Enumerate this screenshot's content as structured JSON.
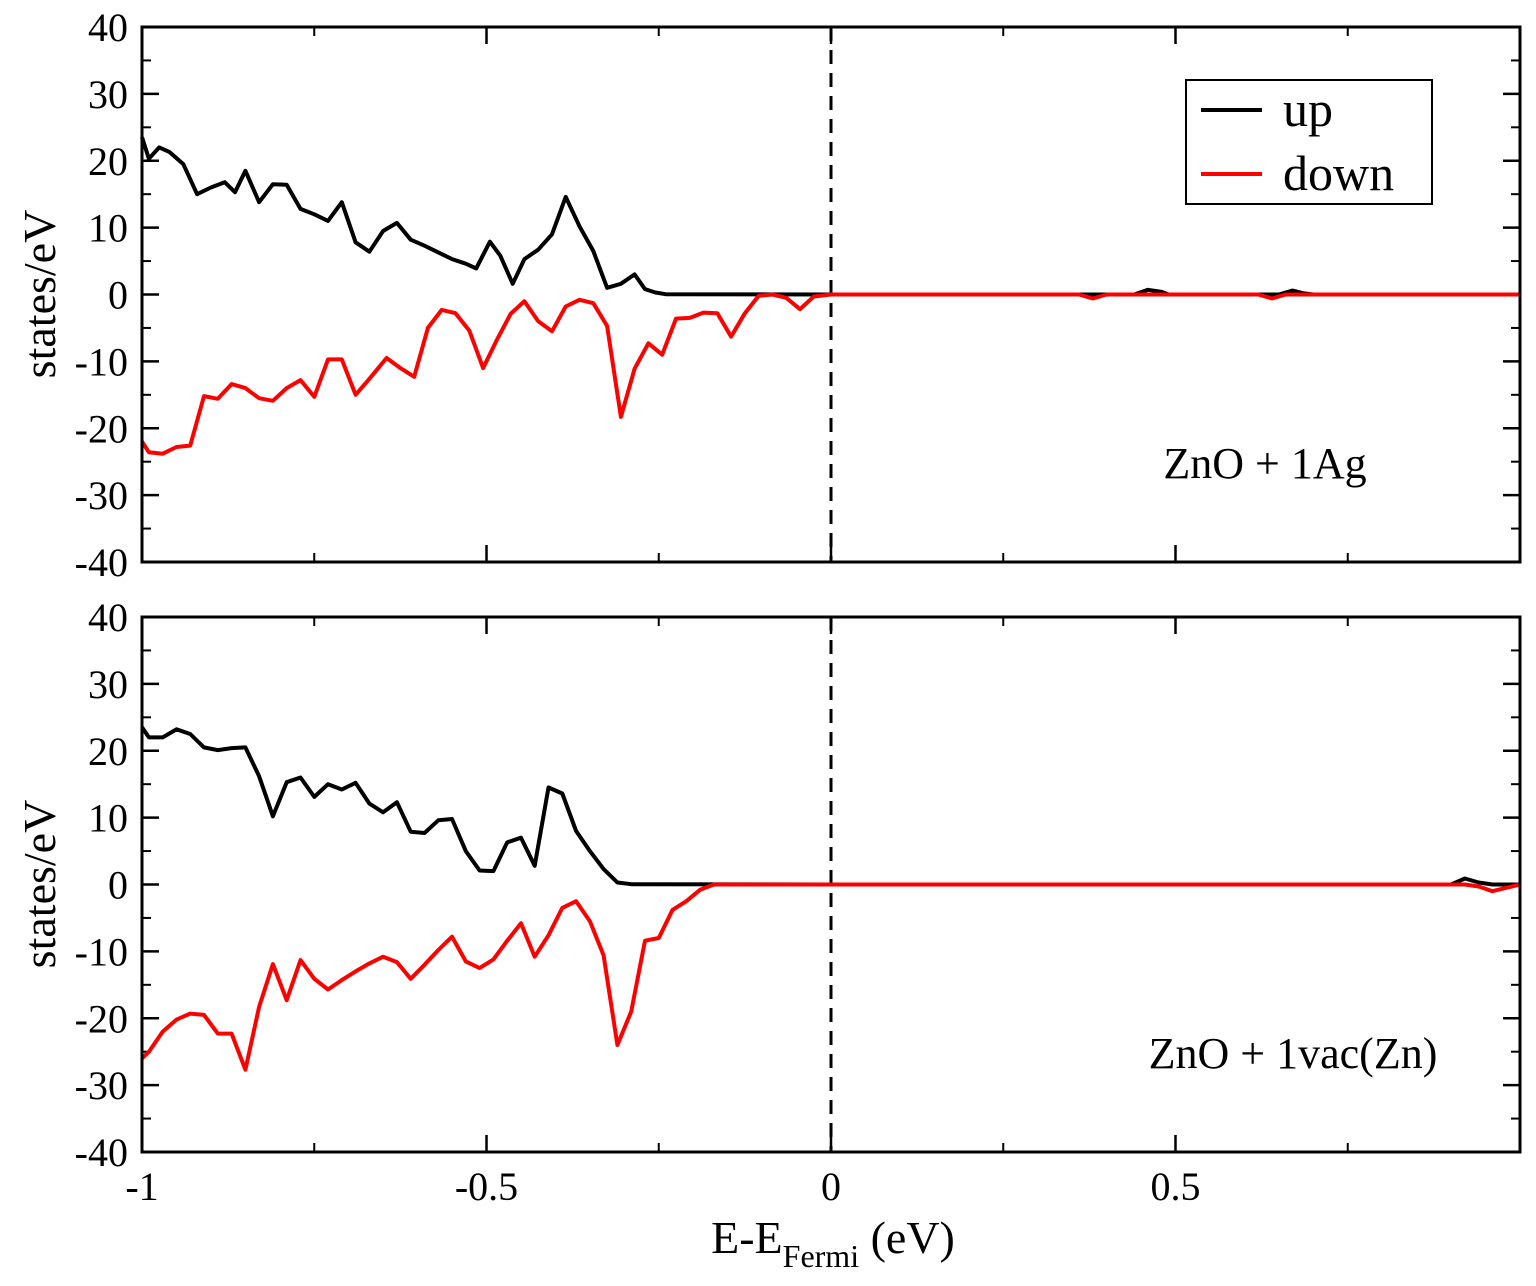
{
  "chart_data": [
    {
      "type": "line",
      "annotation": "ZnO + 1Ag",
      "ylabel": "states/eV",
      "xlim": [
        -1,
        1
      ],
      "ylim": [
        -40,
        40
      ],
      "x_ticks": [
        -1,
        -0.5,
        0,
        0.5
      ],
      "x_tick_labels": [
        "-1",
        "-0.5",
        "0",
        "0.5"
      ],
      "y_ticks": [
        -40,
        -30,
        -20,
        -10,
        0,
        10,
        20,
        30,
        40
      ],
      "y_tick_labels": [
        "-40",
        "-30",
        "-20",
        "-10",
        "0",
        "10",
        "20",
        "30",
        "40"
      ],
      "fermi_line_x": 0,
      "legend": [
        {
          "label": "up",
          "color": "#000000"
        },
        {
          "label": "down",
          "color": "#ff0000"
        }
      ],
      "series": [
        {
          "name": "up",
          "color": "#000000",
          "points": [
            [
              -1.0,
              23.5
            ],
            [
              -0.99,
              20.3
            ],
            [
              -0.975,
              22
            ],
            [
              -0.96,
              21.3
            ],
            [
              -0.94,
              19.5
            ],
            [
              -0.92,
              15
            ],
            [
              -0.9,
              16
            ],
            [
              -0.88,
              16.8
            ],
            [
              -0.865,
              15.3
            ],
            [
              -0.85,
              18.5
            ],
            [
              -0.83,
              13.8
            ],
            [
              -0.81,
              16.5
            ],
            [
              -0.79,
              16.4
            ],
            [
              -0.77,
              12.8
            ],
            [
              -0.75,
              12
            ],
            [
              -0.73,
              11
            ],
            [
              -0.71,
              13.8
            ],
            [
              -0.69,
              7.8
            ],
            [
              -0.67,
              6.4
            ],
            [
              -0.65,
              9.5
            ],
            [
              -0.63,
              10.7
            ],
            [
              -0.61,
              8.2
            ],
            [
              -0.59,
              7.3
            ],
            [
              -0.57,
              6.3
            ],
            [
              -0.55,
              5.3
            ],
            [
              -0.53,
              4.6
            ],
            [
              -0.515,
              3.9
            ],
            [
              -0.495,
              7.9
            ],
            [
              -0.48,
              5.8
            ],
            [
              -0.462,
              1.6
            ],
            [
              -0.445,
              5.3
            ],
            [
              -0.425,
              6.7
            ],
            [
              -0.405,
              9
            ],
            [
              -0.385,
              14.6
            ],
            [
              -0.365,
              10.2
            ],
            [
              -0.345,
              6.5
            ],
            [
              -0.325,
              1
            ],
            [
              -0.305,
              1.6
            ],
            [
              -0.285,
              3
            ],
            [
              -0.27,
              0.8
            ],
            [
              -0.255,
              0.3
            ],
            [
              -0.24,
              0.05
            ],
            [
              0.0,
              0
            ],
            [
              0.44,
              0
            ],
            [
              0.46,
              0.7
            ],
            [
              0.48,
              0.4
            ],
            [
              0.49,
              0
            ],
            [
              0.65,
              0
            ],
            [
              0.67,
              0.6
            ],
            [
              0.685,
              0.2
            ],
            [
              0.7,
              0
            ],
            [
              1.0,
              0
            ]
          ]
        },
        {
          "name": "down",
          "color": "#ff0000",
          "points": [
            [
              -1.0,
              -22
            ],
            [
              -0.99,
              -23.6
            ],
            [
              -0.97,
              -23.8
            ],
            [
              -0.95,
              -22.8
            ],
            [
              -0.93,
              -22.6
            ],
            [
              -0.91,
              -15.2
            ],
            [
              -0.89,
              -15.6
            ],
            [
              -0.87,
              -13.4
            ],
            [
              -0.85,
              -14
            ],
            [
              -0.83,
              -15.5
            ],
            [
              -0.81,
              -15.9
            ],
            [
              -0.79,
              -14
            ],
            [
              -0.77,
              -12.8
            ],
            [
              -0.75,
              -15.3
            ],
            [
              -0.73,
              -9.7
            ],
            [
              -0.71,
              -9.7
            ],
            [
              -0.69,
              -15
            ],
            [
              -0.67,
              -12.6
            ],
            [
              -0.645,
              -9.5
            ],
            [
              -0.625,
              -11
            ],
            [
              -0.605,
              -12.3
            ],
            [
              -0.585,
              -5
            ],
            [
              -0.565,
              -2.3
            ],
            [
              -0.545,
              -2.8
            ],
            [
              -0.525,
              -5.4
            ],
            [
              -0.505,
              -11
            ],
            [
              -0.485,
              -6.8
            ],
            [
              -0.465,
              -2.9
            ],
            [
              -0.445,
              -1
            ],
            [
              -0.425,
              -4
            ],
            [
              -0.405,
              -5.5
            ],
            [
              -0.385,
              -1.8
            ],
            [
              -0.365,
              -0.8
            ],
            [
              -0.345,
              -1.3
            ],
            [
              -0.325,
              -4.7
            ],
            [
              -0.305,
              -18.3
            ],
            [
              -0.285,
              -11.1
            ],
            [
              -0.265,
              -7.3
            ],
            [
              -0.245,
              -9
            ],
            [
              -0.225,
              -3.6
            ],
            [
              -0.205,
              -3.5
            ],
            [
              -0.185,
              -2.7
            ],
            [
              -0.165,
              -2.8
            ],
            [
              -0.145,
              -6.3
            ],
            [
              -0.125,
              -2.8
            ],
            [
              -0.105,
              -0.2
            ],
            [
              -0.085,
              0
            ],
            [
              -0.065,
              -0.5
            ],
            [
              -0.045,
              -2.2
            ],
            [
              -0.025,
              -0.3
            ],
            [
              0.0,
              0
            ],
            [
              0.36,
              0
            ],
            [
              0.38,
              -0.6
            ],
            [
              0.4,
              0
            ],
            [
              0.62,
              0
            ],
            [
              0.64,
              -0.6
            ],
            [
              0.66,
              0
            ],
            [
              1.0,
              0
            ]
          ]
        }
      ]
    },
    {
      "type": "line",
      "annotation": "ZnO + 1vac(Zn)",
      "ylabel": "states/eV",
      "xlabel_main": "E-E",
      "xlabel_sub": "Fermi",
      "xlabel_tail": " (eV)",
      "xlim": [
        -1,
        1
      ],
      "ylim": [
        -40,
        40
      ],
      "x_ticks": [
        -1,
        -0.5,
        0,
        0.5
      ],
      "x_tick_labels": [
        "-1",
        "-0.5",
        "0",
        "0.5"
      ],
      "y_ticks": [
        -40,
        -30,
        -20,
        -10,
        0,
        10,
        20,
        30,
        40
      ],
      "y_tick_labels": [
        "-40",
        "-30",
        "-20",
        "-10",
        "0",
        "10",
        "20",
        "30",
        "40"
      ],
      "fermi_line_x": 0,
      "series": [
        {
          "name": "up",
          "color": "#000000",
          "points": [
            [
              -1.0,
              23.5
            ],
            [
              -0.99,
              22
            ],
            [
              -0.97,
              22
            ],
            [
              -0.95,
              23.2
            ],
            [
              -0.93,
              22.5
            ],
            [
              -0.91,
              20.5
            ],
            [
              -0.89,
              20.1
            ],
            [
              -0.87,
              20.4
            ],
            [
              -0.85,
              20.5
            ],
            [
              -0.83,
              16.2
            ],
            [
              -0.81,
              10.2
            ],
            [
              -0.79,
              15.3
            ],
            [
              -0.77,
              16
            ],
            [
              -0.75,
              13.1
            ],
            [
              -0.73,
              15
            ],
            [
              -0.71,
              14.2
            ],
            [
              -0.69,
              15.2
            ],
            [
              -0.67,
              12.1
            ],
            [
              -0.65,
              10.8
            ],
            [
              -0.63,
              12.3
            ],
            [
              -0.61,
              7.9
            ],
            [
              -0.59,
              7.7
            ],
            [
              -0.57,
              9.6
            ],
            [
              -0.55,
              9.8
            ],
            [
              -0.53,
              5
            ],
            [
              -0.51,
              2.1
            ],
            [
              -0.49,
              2
            ],
            [
              -0.47,
              6.3
            ],
            [
              -0.45,
              7
            ],
            [
              -0.43,
              2.8
            ],
            [
              -0.41,
              14.5
            ],
            [
              -0.39,
              13.6
            ],
            [
              -0.37,
              8
            ],
            [
              -0.35,
              5
            ],
            [
              -0.33,
              2.3
            ],
            [
              -0.31,
              0.3
            ],
            [
              -0.29,
              0.05
            ],
            [
              0.0,
              0
            ],
            [
              0.9,
              0
            ],
            [
              0.92,
              0.9
            ],
            [
              0.94,
              0.3
            ],
            [
              0.96,
              0
            ],
            [
              1.0,
              0
            ]
          ]
        },
        {
          "name": "down",
          "color": "#ff0000",
          "points": [
            [
              -1.0,
              -26
            ],
            [
              -0.99,
              -25
            ],
            [
              -0.97,
              -22
            ],
            [
              -0.95,
              -20.2
            ],
            [
              -0.93,
              -19.3
            ],
            [
              -0.91,
              -19.5
            ],
            [
              -0.89,
              -22.3
            ],
            [
              -0.87,
              -22.3
            ],
            [
              -0.85,
              -27.7
            ],
            [
              -0.83,
              -18.3
            ],
            [
              -0.81,
              -11.9
            ],
            [
              -0.79,
              -17.3
            ],
            [
              -0.77,
              -11.3
            ],
            [
              -0.75,
              -14.1
            ],
            [
              -0.73,
              -15.7
            ],
            [
              -0.71,
              -14.3
            ],
            [
              -0.69,
              -13
            ],
            [
              -0.67,
              -11.8
            ],
            [
              -0.65,
              -10.8
            ],
            [
              -0.63,
              -11.6
            ],
            [
              -0.61,
              -14.1
            ],
            [
              -0.59,
              -12
            ],
            [
              -0.57,
              -9.8
            ],
            [
              -0.55,
              -7.8
            ],
            [
              -0.53,
              -11.5
            ],
            [
              -0.51,
              -12.5
            ],
            [
              -0.49,
              -11.2
            ],
            [
              -0.47,
              -8.4
            ],
            [
              -0.45,
              -5.8
            ],
            [
              -0.43,
              -10.8
            ],
            [
              -0.41,
              -7.6
            ],
            [
              -0.39,
              -3.5
            ],
            [
              -0.37,
              -2.5
            ],
            [
              -0.35,
              -5.5
            ],
            [
              -0.33,
              -10.6
            ],
            [
              -0.31,
              -24
            ],
            [
              -0.29,
              -19
            ],
            [
              -0.27,
              -8.4
            ],
            [
              -0.25,
              -8
            ],
            [
              -0.23,
              -3.8
            ],
            [
              -0.21,
              -2.5
            ],
            [
              -0.19,
              -0.8
            ],
            [
              -0.17,
              0
            ],
            [
              0.0,
              0
            ],
            [
              0.92,
              0
            ],
            [
              0.94,
              -0.3
            ],
            [
              0.96,
              -1
            ],
            [
              0.98,
              -0.5
            ],
            [
              1.0,
              0
            ]
          ]
        }
      ]
    }
  ]
}
